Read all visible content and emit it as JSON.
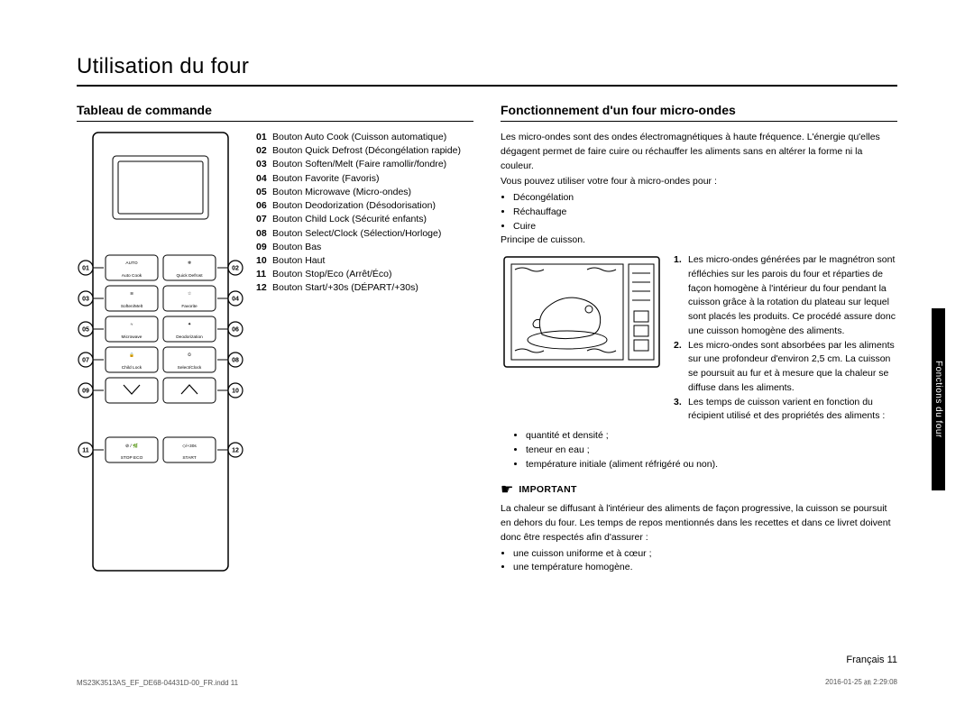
{
  "page_title": "Utilisation du four",
  "left": {
    "subhead": "Tableau de commande",
    "panel": {
      "buttons": [
        {
          "num": "01",
          "label": "Auto Cook",
          "sub": "AUTO"
        },
        {
          "num": "02",
          "label": "Quick Defrost",
          "sub": "❄"
        },
        {
          "num": "03",
          "label": "Soften/Melt",
          "sub": "≋"
        },
        {
          "num": "04",
          "label": "Favorite",
          "sub": "☆"
        },
        {
          "num": "05",
          "label": "Microwave",
          "sub": "≈"
        },
        {
          "num": "06",
          "label": "Deodorization",
          "sub": "✦"
        },
        {
          "num": "07",
          "label": "Child Lock",
          "sub": "🔒"
        },
        {
          "num": "08",
          "label": "Select/Clock",
          "sub": "⏲"
        },
        {
          "num": "11",
          "label": "STOP  ECO",
          "sub": "⊘ / 🌿"
        },
        {
          "num": "12",
          "label": "START",
          "sub": "◇/+30s"
        }
      ],
      "callouts": [
        "01",
        "02",
        "03",
        "04",
        "05",
        "06",
        "07",
        "08",
        "09",
        "10",
        "11",
        "12"
      ]
    },
    "legend": [
      {
        "n": "01",
        "t": "Bouton Auto Cook (Cuisson automatique)"
      },
      {
        "n": "02",
        "t": "Bouton Quick Defrost (Décongélation rapide)"
      },
      {
        "n": "03",
        "t": "Bouton Soften/Melt (Faire ramollir/fondre)"
      },
      {
        "n": "04",
        "t": "Bouton Favorite (Favoris)"
      },
      {
        "n": "05",
        "t": "Bouton Microwave (Micro-ondes)"
      },
      {
        "n": "06",
        "t": "Bouton Deodorization (Désodorisation)"
      },
      {
        "n": "07",
        "t": "Bouton Child Lock (Sécurité enfants)"
      },
      {
        "n": "08",
        "t": "Bouton Select/Clock (Sélection/Horloge)"
      },
      {
        "n": "09",
        "t": "Bouton Bas"
      },
      {
        "n": "10",
        "t": "Bouton Haut"
      },
      {
        "n": "11",
        "t": "Bouton Stop/Eco (Arrêt/Éco)"
      },
      {
        "n": "12",
        "t": "Bouton Start/+30s (DÉPART/+30s)"
      }
    ]
  },
  "right": {
    "subhead": "Fonctionnement d'un four micro-ondes",
    "intro": "Les micro-ondes sont des ondes électromagnétiques à haute fréquence. L'énergie qu'elles dégagent permet de faire cuire ou réchauffer les aliments sans en altérer la forme ni la couleur.",
    "uses_label": "Vous pouvez utiliser votre four à micro-ondes pour :",
    "uses": [
      "Décongélation",
      "Réchauffage",
      "Cuire"
    ],
    "principle_label": "Principe de cuisson.",
    "principles": [
      {
        "n": "1.",
        "t": "Les micro-ondes générées par le magnétron sont réfléchies sur les parois du four et réparties de façon homogène à l'intérieur du four pendant la cuisson grâce à la rotation du plateau sur lequel sont placés les produits. Ce procédé assure donc une cuisson homogène des aliments."
      },
      {
        "n": "2.",
        "t": "Les micro-ondes sont absorbées par les aliments sur une profondeur d'environ 2,5 cm. La cuisson se poursuit au fur et à mesure que la chaleur se diffuse dans les aliments."
      },
      {
        "n": "3.",
        "t": "Les temps de cuisson varient en fonction du récipient utilisé et des propriétés des aliments :"
      }
    ],
    "sub_bullets": [
      "quantité et densité ;",
      "teneur en eau ;",
      "température initiale (aliment réfrigéré ou non)."
    ],
    "important_label": "IMPORTANT",
    "important_text": "La chaleur se diffusant à l'intérieur des aliments de façon progressive, la cuisson se poursuit en dehors du four. Les temps de repos mentionnés dans les recettes et dans ce livret doivent donc être respectés afin d'assurer :",
    "important_bullets": [
      "une cuisson uniforme et à cœur ;",
      "une température homogène."
    ]
  },
  "sidebar": "Fonctions du four",
  "footer": {
    "lang": "Français  11",
    "indd": "MS23K3513AS_EF_DE68-04431D-00_FR.indd   11",
    "date": "2016-01-25   ㏂ 2:29:08"
  },
  "colors": {
    "text": "#000000",
    "bg": "#ffffff",
    "rule": "#000000",
    "tab_bg": "#000000",
    "tab_text": "#ffffff"
  }
}
